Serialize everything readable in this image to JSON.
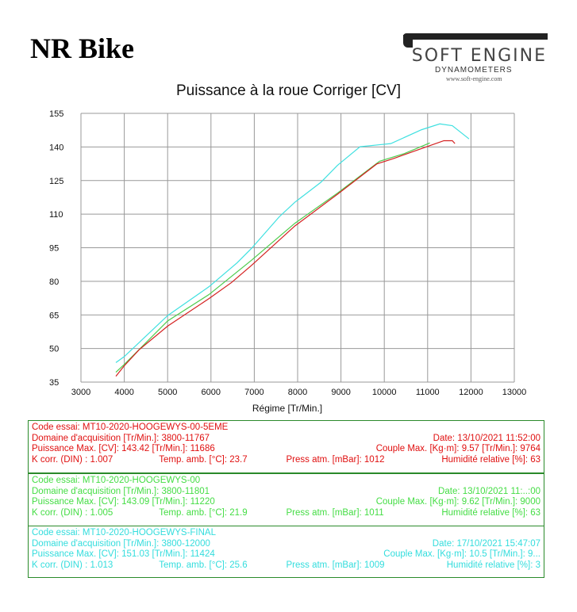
{
  "header": {
    "brand": "NR Bike",
    "logo_text": "SOFT ENGINE",
    "logo_sub": "DYNAMOMETERS",
    "logo_url": "www.soft-engine.com"
  },
  "chart_data": {
    "type": "line",
    "title": "Puissance à la roue Corriger [CV]",
    "xlabel": "Régime [Tr/Min.]",
    "ylabel": "",
    "xlim": [
      3000,
      13000
    ],
    "ylim": [
      35,
      155
    ],
    "xticks": [
      "3000",
      "4000",
      "5000",
      "6000",
      "7000",
      "8000",
      "9000",
      "10000",
      "11000",
      "12000",
      "13000"
    ],
    "yticks": [
      "35",
      "50",
      "65",
      "80",
      "95",
      "110",
      "125",
      "140",
      "155"
    ],
    "grid": true,
    "series": [
      {
        "color": "#3ee0e0",
        "points": [
          [
            3806,
            43.7
          ],
          [
            4000,
            46.4
          ],
          [
            5000,
            64.7
          ],
          [
            5955,
            77.6
          ],
          [
            6600,
            88.2
          ],
          [
            6935,
            94.7
          ],
          [
            7580,
            108.9
          ],
          [
            7935,
            115.3
          ],
          [
            8535,
            124.2
          ],
          [
            8920,
            131.8
          ],
          [
            9440,
            140.1
          ],
          [
            9890,
            141.0
          ],
          [
            10150,
            141.5
          ],
          [
            10860,
            147.7
          ],
          [
            11280,
            150.3
          ],
          [
            11570,
            149.5
          ],
          [
            11955,
            143.6
          ]
        ]
      },
      {
        "color": "#4ccc4c",
        "points": [
          [
            3806,
            39.4
          ],
          [
            4000,
            42.9
          ],
          [
            5000,
            62.3
          ],
          [
            5955,
            74.1
          ],
          [
            6935,
            89.4
          ],
          [
            7935,
            105.9
          ],
          [
            8920,
            119.4
          ],
          [
            9890,
            133.6
          ],
          [
            10470,
            137.1
          ],
          [
            11050,
            141.8
          ]
        ]
      },
      {
        "color": "#d42020",
        "points": [
          [
            3806,
            37.6
          ],
          [
            4000,
            42.3
          ],
          [
            4340,
            49.4
          ],
          [
            5000,
            60.0
          ],
          [
            5955,
            72.3
          ],
          [
            6470,
            79.4
          ],
          [
            6935,
            87.1
          ],
          [
            7935,
            104.7
          ],
          [
            8920,
            118.9
          ],
          [
            9825,
            132.4
          ],
          [
            10210,
            134.8
          ],
          [
            10890,
            139.5
          ],
          [
            11375,
            142.8
          ],
          [
            11570,
            142.8
          ],
          [
            11630,
            141.5
          ]
        ]
      }
    ]
  },
  "tests": [
    {
      "color": "#e01010",
      "code": "Code essai: MT10-2020-HOOGEWYS-00-5EME",
      "domain": "Domaine d'acquisition [Tr/Min.]: 3800-11767",
      "date": "Date: 13/10/2021   11:52:00",
      "power": "Puissance Max. [CV]: 143.42  [Tr/Min.]: 11686",
      "torque": "Couple Max. [Kg·m]: 9.57  [Tr/Min.]: 9764",
      "kcorr": "K corr. (DIN) : 1.007",
      "temp": "Temp. amb. [°C]: 23.7",
      "press": "Press atm. [mBar]: 1012",
      "hum": "Humidité relative [%]: 63"
    },
    {
      "color": "#44dd44",
      "code": "Code essai: MT10-2020-HOOGEWYS-00",
      "domain": "Domaine d'acquisition [Tr/Min.]: 3800-11801",
      "date": "Date: 13/10/2021   11:..:00",
      "power": "Puissance Max. [CV]: 143.09  [Tr/Min.]: 11220",
      "torque": "Couple Max. [Kg·m]: 9.62  [Tr/Min.]: 9000",
      "kcorr": "K corr. (DIN) : 1.005",
      "temp": "Temp. amb. [°C]: 21.9",
      "press": "Press atm. [mBar]: 1011",
      "hum": "Humidité relative [%]: 63"
    },
    {
      "color": "#33dddd",
      "code": "Code essai: MT10-2020-HOOGEWYS-FINAL",
      "domain": "Domaine d'acquisition [Tr/Min.]: 3800-12000",
      "date": "Date: 17/10/2021   15:47:07",
      "power": "Puissance Max. [CV]: 151.03  [Tr/Min.]: 11424",
      "torque": "Couple Max. [Kg·m]: 10.5  [Tr/Min.]: 9...",
      "kcorr": "K corr. (DIN) : 1.013",
      "temp": "Temp. amb. [°C]: 25.6",
      "press": "Press atm. [mBar]: 1009",
      "hum": "Humidité relative [%]: 3"
    }
  ]
}
